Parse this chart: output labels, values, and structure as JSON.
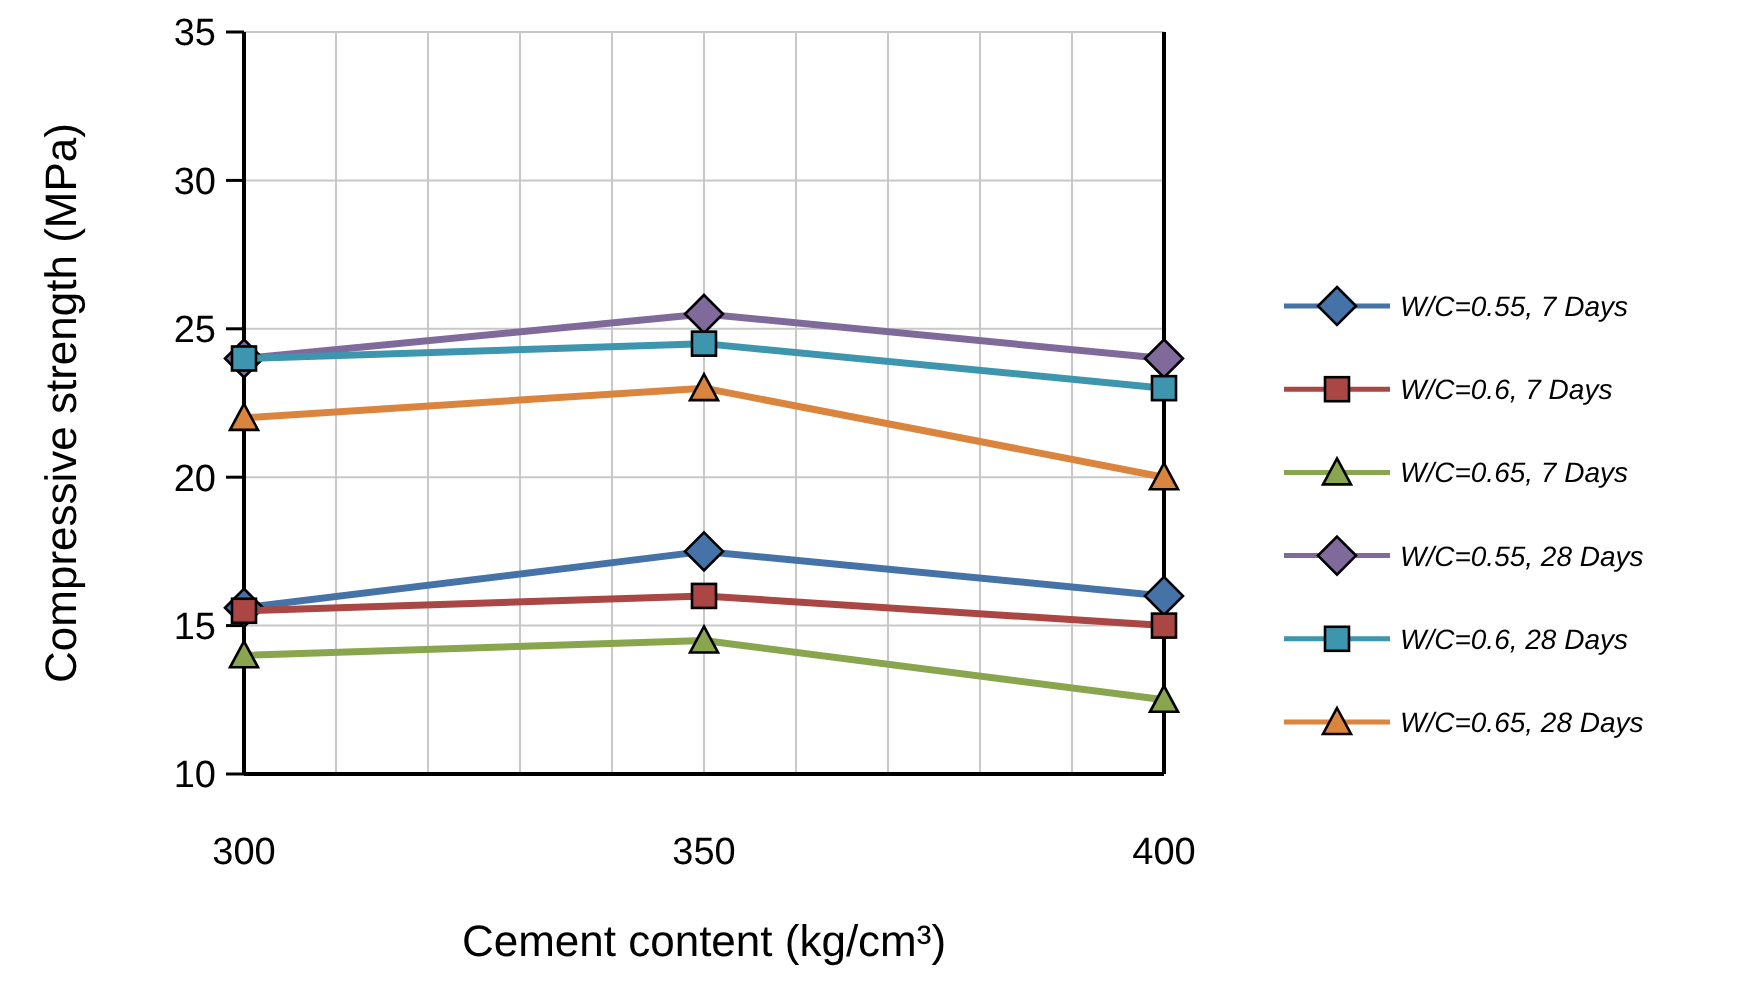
{
  "chart_data": {
    "type": "line",
    "xlabel": "Cement content (kg/cm³)",
    "ylabel": "Compressive strength (MPa)",
    "x": [
      300,
      350,
      400
    ],
    "xlim": [
      300,
      400
    ],
    "xticks": [
      300,
      {
        "value": 310,
        "label": null
      },
      {
        "value": 320,
        "label": null
      },
      {
        "value": 330,
        "label": null
      },
      {
        "value": 340,
        "label": null
      },
      350,
      {
        "value": 360,
        "label": null
      },
      {
        "value": 370,
        "label": null
      },
      {
        "value": 380,
        "label": null
      },
      {
        "value": 390,
        "label": null
      },
      400
    ],
    "ylim": [
      10,
      35
    ],
    "yticks": [
      10,
      15,
      20,
      25,
      30,
      35
    ],
    "grid": true,
    "legend": "right",
    "line_style": "solid",
    "series": [
      {
        "name": "W/C=0.55, 7 Days",
        "color": "#4572a7",
        "marker": "diamond",
        "values": [
          15.6,
          17.5,
          16
        ]
      },
      {
        "name": "W/C=0.6, 7 Days",
        "color": "#aa4643",
        "marker": "square",
        "values": [
          15.5,
          16,
          15
        ]
      },
      {
        "name": "W/C=0.65, 7 Days",
        "color": "#89a54e",
        "marker": "triangle",
        "values": [
          14,
          14.5,
          12.5
        ]
      },
      {
        "name": "W/C=0.55, 28 Days",
        "color": "#80699b",
        "marker": "diamond",
        "values": [
          24,
          25.5,
          24
        ]
      },
      {
        "name": "W/C=0.6, 28 Days",
        "color": "#3d96ae",
        "marker": "square",
        "values": [
          24,
          24.5,
          23
        ]
      },
      {
        "name": "W/C=0.65, 28 Days",
        "color": "#db843d",
        "marker": "triangle",
        "values": [
          22,
          23,
          20
        ]
      }
    ]
  }
}
